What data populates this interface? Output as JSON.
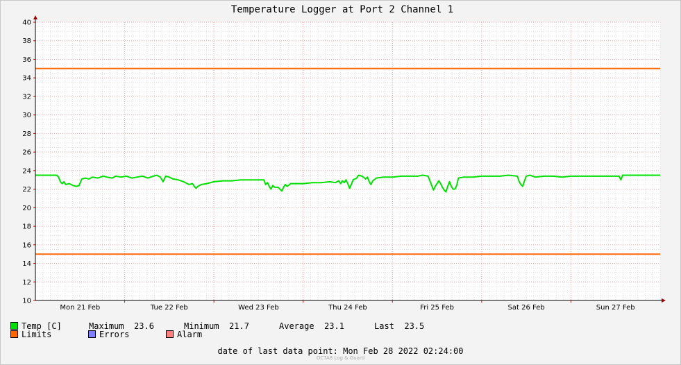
{
  "chart_data": {
    "type": "line",
    "title": "Temperature Logger at Port 2 Channel 1",
    "ylim": [
      10,
      40
    ],
    "yticks": [
      10,
      12,
      14,
      16,
      18,
      20,
      22,
      24,
      26,
      28,
      30,
      32,
      34,
      36,
      38,
      40
    ],
    "xlim": [
      0,
      7
    ],
    "xticks": [
      {
        "x": 0.5,
        "label": "Mon 21 Feb"
      },
      {
        "x": 1.5,
        "label": "Tue 22 Feb"
      },
      {
        "x": 2.5,
        "label": "Wed 23 Feb"
      },
      {
        "x": 3.5,
        "label": "Thu 24 Feb"
      },
      {
        "x": 4.5,
        "label": "Fri 25 Feb"
      },
      {
        "x": 5.5,
        "label": "Sat 26 Feb"
      },
      {
        "x": 6.5,
        "label": "Sun 27 Feb"
      }
    ],
    "grid": true,
    "series": [
      {
        "name": "Temp [C]",
        "color": "#00e000",
        "points": [
          [
            0.0,
            23.5
          ],
          [
            0.1,
            23.5
          ],
          [
            0.24,
            23.5
          ],
          [
            0.26,
            23.3
          ],
          [
            0.28,
            22.8
          ],
          [
            0.3,
            22.6
          ],
          [
            0.32,
            22.8
          ],
          [
            0.34,
            22.5
          ],
          [
            0.38,
            22.6
          ],
          [
            0.42,
            22.4
          ],
          [
            0.46,
            22.3
          ],
          [
            0.49,
            22.4
          ],
          [
            0.52,
            23.1
          ],
          [
            0.56,
            23.2
          ],
          [
            0.6,
            23.1
          ],
          [
            0.64,
            23.3
          ],
          [
            0.7,
            23.2
          ],
          [
            0.76,
            23.4
          ],
          [
            0.8,
            23.3
          ],
          [
            0.86,
            23.2
          ],
          [
            0.9,
            23.4
          ],
          [
            0.96,
            23.3
          ],
          [
            1.02,
            23.4
          ],
          [
            1.08,
            23.2
          ],
          [
            1.14,
            23.3
          ],
          [
            1.2,
            23.4
          ],
          [
            1.26,
            23.2
          ],
          [
            1.32,
            23.4
          ],
          [
            1.36,
            23.5
          ],
          [
            1.4,
            23.3
          ],
          [
            1.43,
            22.8
          ],
          [
            1.46,
            23.4
          ],
          [
            1.5,
            23.3
          ],
          [
            1.54,
            23.1
          ],
          [
            1.6,
            23.0
          ],
          [
            1.66,
            22.8
          ],
          [
            1.72,
            22.5
          ],
          [
            1.76,
            22.6
          ],
          [
            1.78,
            22.3
          ],
          [
            1.8,
            22.1
          ],
          [
            1.82,
            22.3
          ],
          [
            1.86,
            22.5
          ],
          [
            1.92,
            22.6
          ],
          [
            2.0,
            22.8
          ],
          [
            2.1,
            22.9
          ],
          [
            2.2,
            22.9
          ],
          [
            2.3,
            23.0
          ],
          [
            2.4,
            23.0
          ],
          [
            2.5,
            23.0
          ],
          [
            2.56,
            23.0
          ],
          [
            2.58,
            22.5
          ],
          [
            2.6,
            22.7
          ],
          [
            2.62,
            22.3
          ],
          [
            2.64,
            22.0
          ],
          [
            2.66,
            22.4
          ],
          [
            2.68,
            22.2
          ],
          [
            2.72,
            22.2
          ],
          [
            2.74,
            22.0
          ],
          [
            2.76,
            21.8
          ],
          [
            2.78,
            22.2
          ],
          [
            2.8,
            22.5
          ],
          [
            2.82,
            22.3
          ],
          [
            2.86,
            22.6
          ],
          [
            2.92,
            22.6
          ],
          [
            3.0,
            22.6
          ],
          [
            3.1,
            22.7
          ],
          [
            3.2,
            22.7
          ],
          [
            3.3,
            22.8
          ],
          [
            3.36,
            22.7
          ],
          [
            3.4,
            22.9
          ],
          [
            3.42,
            22.6
          ],
          [
            3.44,
            22.9
          ],
          [
            3.46,
            22.7
          ],
          [
            3.48,
            23.0
          ],
          [
            3.5,
            22.6
          ],
          [
            3.52,
            22.1
          ],
          [
            3.54,
            22.5
          ],
          [
            3.56,
            23.0
          ],
          [
            3.6,
            23.2
          ],
          [
            3.62,
            23.5
          ],
          [
            3.66,
            23.4
          ],
          [
            3.7,
            23.1
          ],
          [
            3.72,
            23.3
          ],
          [
            3.74,
            22.8
          ],
          [
            3.76,
            22.5
          ],
          [
            3.78,
            22.9
          ],
          [
            3.82,
            23.2
          ],
          [
            3.9,
            23.3
          ],
          [
            4.0,
            23.3
          ],
          [
            4.1,
            23.4
          ],
          [
            4.2,
            23.4
          ],
          [
            4.28,
            23.4
          ],
          [
            4.34,
            23.5
          ],
          [
            4.4,
            23.4
          ],
          [
            4.42,
            22.9
          ],
          [
            4.44,
            22.4
          ],
          [
            4.46,
            21.9
          ],
          [
            4.48,
            22.3
          ],
          [
            4.5,
            22.6
          ],
          [
            4.52,
            22.9
          ],
          [
            4.54,
            22.6
          ],
          [
            4.56,
            22.2
          ],
          [
            4.58,
            21.9
          ],
          [
            4.6,
            21.7
          ],
          [
            4.62,
            22.3
          ],
          [
            4.64,
            22.8
          ],
          [
            4.66,
            22.3
          ],
          [
            4.68,
            22.0
          ],
          [
            4.7,
            22.0
          ],
          [
            4.72,
            22.4
          ],
          [
            4.74,
            23.2
          ],
          [
            4.8,
            23.3
          ],
          [
            4.9,
            23.3
          ],
          [
            5.0,
            23.4
          ],
          [
            5.1,
            23.4
          ],
          [
            5.2,
            23.4
          ],
          [
            5.3,
            23.5
          ],
          [
            5.4,
            23.4
          ],
          [
            5.42,
            22.8
          ],
          [
            5.44,
            22.5
          ],
          [
            5.46,
            22.3
          ],
          [
            5.48,
            22.9
          ],
          [
            5.5,
            23.4
          ],
          [
            5.54,
            23.5
          ],
          [
            5.6,
            23.3
          ],
          [
            5.7,
            23.4
          ],
          [
            5.8,
            23.4
          ],
          [
            5.9,
            23.3
          ],
          [
            6.0,
            23.4
          ],
          [
            6.1,
            23.4
          ],
          [
            6.2,
            23.4
          ],
          [
            6.3,
            23.4
          ],
          [
            6.4,
            23.4
          ],
          [
            6.54,
            23.4
          ],
          [
            6.56,
            23.0
          ],
          [
            6.58,
            23.5
          ],
          [
            6.7,
            23.5
          ],
          [
            6.8,
            23.5
          ],
          [
            6.9,
            23.5
          ],
          [
            7.0,
            23.5
          ]
        ]
      },
      {
        "name": "Limits",
        "color": "#ff6600",
        "points": [
          [
            0,
            35
          ],
          [
            7,
            35
          ]
        ]
      },
      {
        "name": "Limits",
        "color": "#ff6600",
        "points": [
          [
            0,
            15
          ],
          [
            7,
            15
          ]
        ]
      }
    ]
  },
  "legend": {
    "temp_label": "Temp [C]",
    "max_label": "Maximum",
    "max_value": "23.6",
    "min_label": "Minimum",
    "min_value": "21.7",
    "avg_label": "Average",
    "avg_value": "23.1",
    "last_label": "Last",
    "last_value": "23.5",
    "limits_label": "Limits",
    "errors_label": "Errors",
    "alarm_label": "Alarm",
    "temp_color": "#00e000",
    "limits_color": "#ff6600",
    "errors_color": "#7f7fff",
    "alarm_color": "#ff7f7f"
  },
  "footer": {
    "last_point_label": "date of last data point:",
    "last_point_value": "Mon Feb 28 2022 02:24:00",
    "credit": "OCTA8 Log & Guard"
  }
}
